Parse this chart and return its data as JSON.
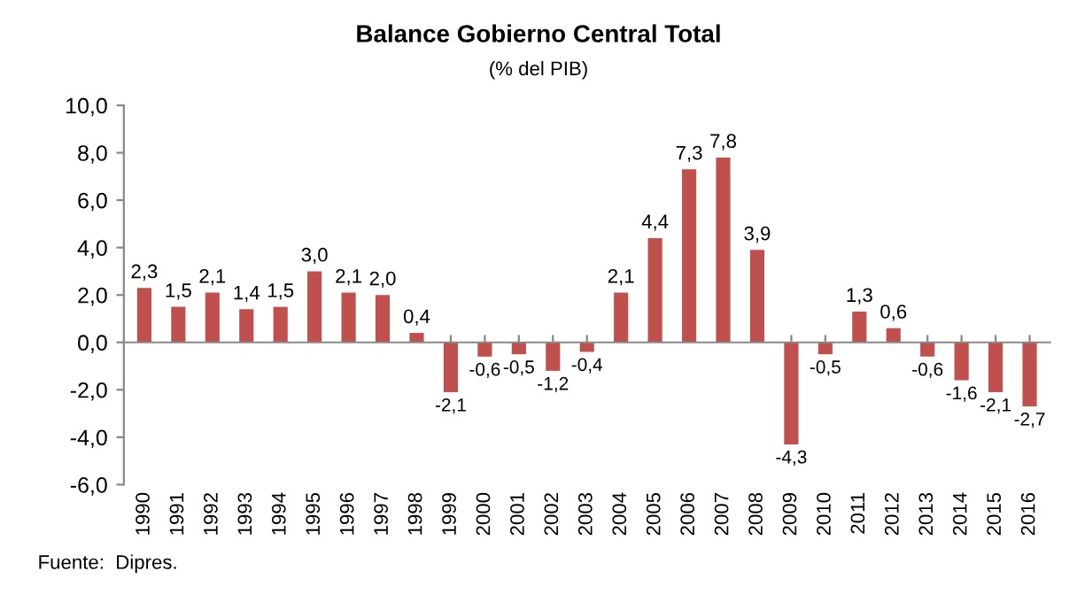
{
  "chart_data": {
    "type": "bar",
    "title": "Balance Gobierno Central Total",
    "subtitle": "(% del PIB)",
    "categories": [
      "1990",
      "1991",
      "1992",
      "1993",
      "1994",
      "1995",
      "1996",
      "1997",
      "1998",
      "1999",
      "2000",
      "2001",
      "2002",
      "2003",
      "2004",
      "2005",
      "2006",
      "2007",
      "2008",
      "2009",
      "2010",
      "2011",
      "2012",
      "2013",
      "2014",
      "2015",
      "2016"
    ],
    "values": [
      2.3,
      1.5,
      2.1,
      1.4,
      1.5,
      3.0,
      2.1,
      2.0,
      0.4,
      -2.1,
      -0.6,
      -0.5,
      -1.2,
      -0.4,
      2.1,
      4.4,
      7.3,
      7.8,
      3.9,
      -4.3,
      -0.5,
      1.3,
      0.6,
      -0.6,
      -1.6,
      -2.1,
      -2.7
    ],
    "value_labels": [
      "2,3",
      "1,5",
      "2,1",
      "1,4",
      "1,5",
      "3,0",
      "2,1",
      "2,0",
      "0,4",
      "-2,1",
      "-0,6",
      "-0,5",
      "-1,2",
      "-0,4",
      "2,1",
      "4,4",
      "7,3",
      "7,8",
      "3,9",
      "-4,3",
      "-0,5",
      "1,3",
      "0,6",
      "-0,6",
      "-1,6",
      "-2,1",
      "-2,7"
    ],
    "color": "#c0504d",
    "ylim": [
      -6,
      10
    ],
    "yticks": [
      {
        "value": -6,
        "label": "-6,0"
      },
      {
        "value": -4,
        "label": "-4,0"
      },
      {
        "value": -2,
        "label": "-2,0"
      },
      {
        "value": 0,
        "label": "0,0"
      },
      {
        "value": 2,
        "label": "2,0"
      },
      {
        "value": 4,
        "label": "4,0"
      },
      {
        "value": 6,
        "label": "6,0"
      },
      {
        "value": 8,
        "label": "8,0"
      },
      {
        "value": 10,
        "label": "10,0"
      }
    ],
    "legend": false,
    "annotations": [
      "Fuente:  Dipres."
    ]
  }
}
